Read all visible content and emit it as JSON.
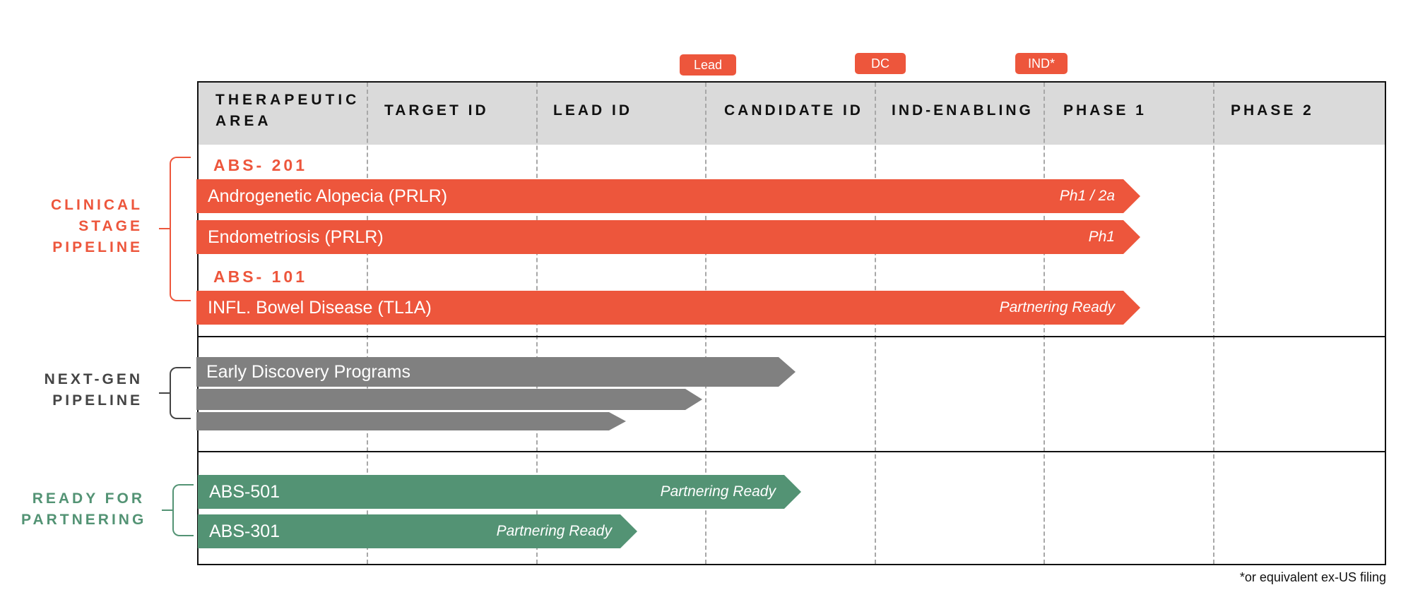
{
  "milestones": {
    "lead": "Lead",
    "dc": "DC",
    "ind": "IND*"
  },
  "columns": {
    "therapeutic_area": [
      "THERAPEUTIC",
      "AREA"
    ],
    "target_id": "TARGET ID",
    "lead_id": "LEAD ID",
    "candidate_id": "CANDIDATE ID",
    "ind_enabling": "IND-ENABLING",
    "phase_1": "PHASE 1",
    "phase_2": "PHASE 2"
  },
  "colors": {
    "clinical": "#ed563c",
    "next_gen": "#808080",
    "partnering": "#539374",
    "header_bg": "#dadada"
  },
  "groups": {
    "clinical": {
      "label": [
        "CLINICAL",
        "STAGE",
        "PIPELINE"
      ],
      "programs": [
        {
          "code": "ABS- 201",
          "indications": [
            {
              "name": "Androgenetic Alopecia (PRLR)",
              "status": "Ph1 / 2a",
              "stage_progress": 0.73
            },
            {
              "name": "Endometriosis (PRLR)",
              "status": "Ph1",
              "stage_progress": 0.73
            }
          ]
        },
        {
          "code": "ABS- 101",
          "indications": [
            {
              "name": "INFL. Bowel Disease (TL1A)",
              "status": "Partnering Ready",
              "stage_progress": 0.73
            }
          ]
        }
      ]
    },
    "next_gen": {
      "label": [
        "NEXT-GEN",
        "PIPELINE"
      ],
      "bars": [
        {
          "name": "Early Discovery Programs",
          "stage_progress": 0.39
        },
        {
          "name": "",
          "stage_progress": 0.32
        },
        {
          "name": "",
          "stage_progress": 0.26
        }
      ]
    },
    "partnering": {
      "label": [
        "READY FOR",
        "PARTNERING"
      ],
      "bars": [
        {
          "name": "ABS-501",
          "status": "Partnering Ready",
          "stage_progress": 0.4
        },
        {
          "name": "ABS-301",
          "status": "Partnering Ready",
          "stage_progress": 0.28
        }
      ]
    }
  },
  "footnote": "*or equivalent ex-US filing"
}
